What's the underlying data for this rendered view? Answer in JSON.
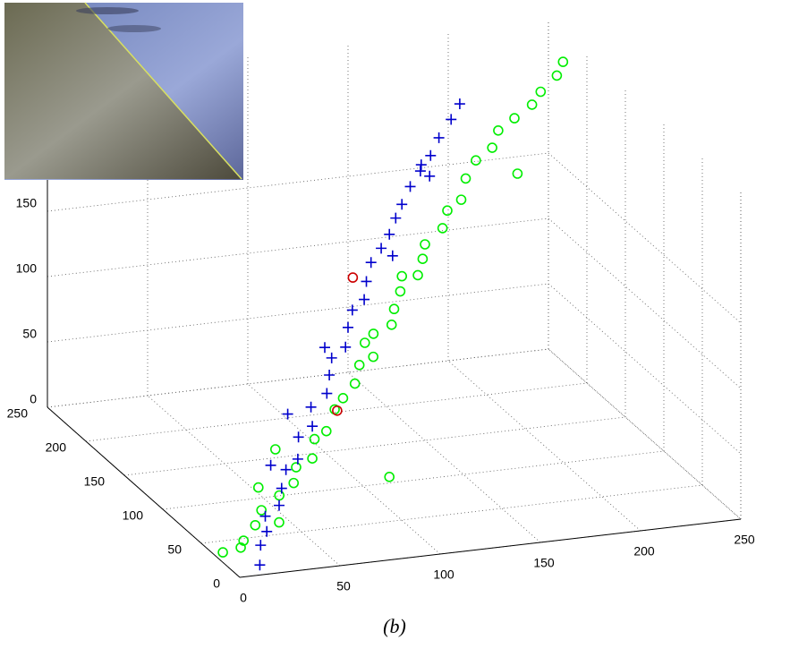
{
  "chart_data": {
    "type": "scatter3d",
    "caption": "(b)",
    "xlim": [
      0,
      250
    ],
    "ylim": [
      0,
      250
    ],
    "zlim": [
      0,
      250
    ],
    "xticks": [
      0,
      50,
      100,
      150,
      200,
      250
    ],
    "yticks": [
      0,
      50,
      100,
      150,
      200,
      250
    ],
    "zticks": [
      0,
      50,
      100,
      150
    ],
    "grid": true,
    "series": [
      {
        "color": "#00ee00",
        "marker": "o",
        "x": [
          5,
          12,
          18,
          25,
          30,
          35,
          42,
          48,
          55,
          60,
          68,
          72,
          80,
          88,
          92,
          100,
          105,
          112,
          118,
          125,
          130,
          138,
          145,
          150,
          158,
          165,
          170,
          178,
          185,
          192,
          200,
          210,
          218,
          225,
          235,
          240,
          40,
          90,
          150,
          60,
          200,
          120
        ],
        "y": [
          35,
          30,
          42,
          45,
          50,
          40,
          58,
          55,
          70,
          62,
          80,
          75,
          85,
          95,
          90,
          105,
          100,
          118,
          110,
          125,
          130,
          128,
          140,
          150,
          148,
          160,
          155,
          170,
          175,
          172,
          185,
          190,
          188,
          195,
          200,
          205,
          80,
          40,
          180,
          110,
          160,
          150
        ],
        "z": [
          0,
          5,
          3,
          12,
          20,
          15,
          25,
          35,
          38,
          48,
          52,
          60,
          70,
          72,
          85,
          90,
          98,
          105,
          115,
          118,
          128,
          140,
          145,
          150,
          162,
          168,
          178,
          185,
          195,
          205,
          210,
          215,
          225,
          230,
          238,
          245,
          20,
          40,
          110,
          30,
          190,
          80
        ]
      },
      {
        "color": "#0000cc",
        "marker": "+",
        "x": [
          15,
          20,
          25,
          30,
          35,
          42,
          48,
          52,
          60,
          65,
          72,
          78,
          85,
          90,
          95,
          102,
          108,
          112,
          120,
          125,
          132,
          138,
          145,
          150,
          158,
          165,
          172,
          180,
          188,
          195,
          70,
          130,
          100,
          160,
          50,
          175
        ],
        "y": [
          13,
          25,
          30,
          45,
          40,
          55,
          65,
          60,
          80,
          75,
          95,
          90,
          105,
          115,
          110,
          125,
          135,
          130,
          148,
          155,
          160,
          165,
          175,
          180,
          190,
          195,
          200,
          210,
          215,
          222,
          120,
          140,
          150,
          170,
          90,
          220
        ],
        "z": [
          0,
          8,
          15,
          18,
          28,
          32,
          40,
          50,
          55,
          65,
          68,
          80,
          85,
          92,
          102,
          108,
          115,
          125,
          128,
          138,
          145,
          152,
          158,
          165,
          172,
          180,
          188,
          195,
          205,
          212,
          50,
          150,
          80,
          190,
          30,
          170
        ]
      },
      {
        "color": "#cc0000",
        "marker": "o",
        "x": [
          87,
          114
        ],
        "y": [
          100,
          150
        ],
        "z": [
          60,
          131
        ]
      }
    ]
  }
}
